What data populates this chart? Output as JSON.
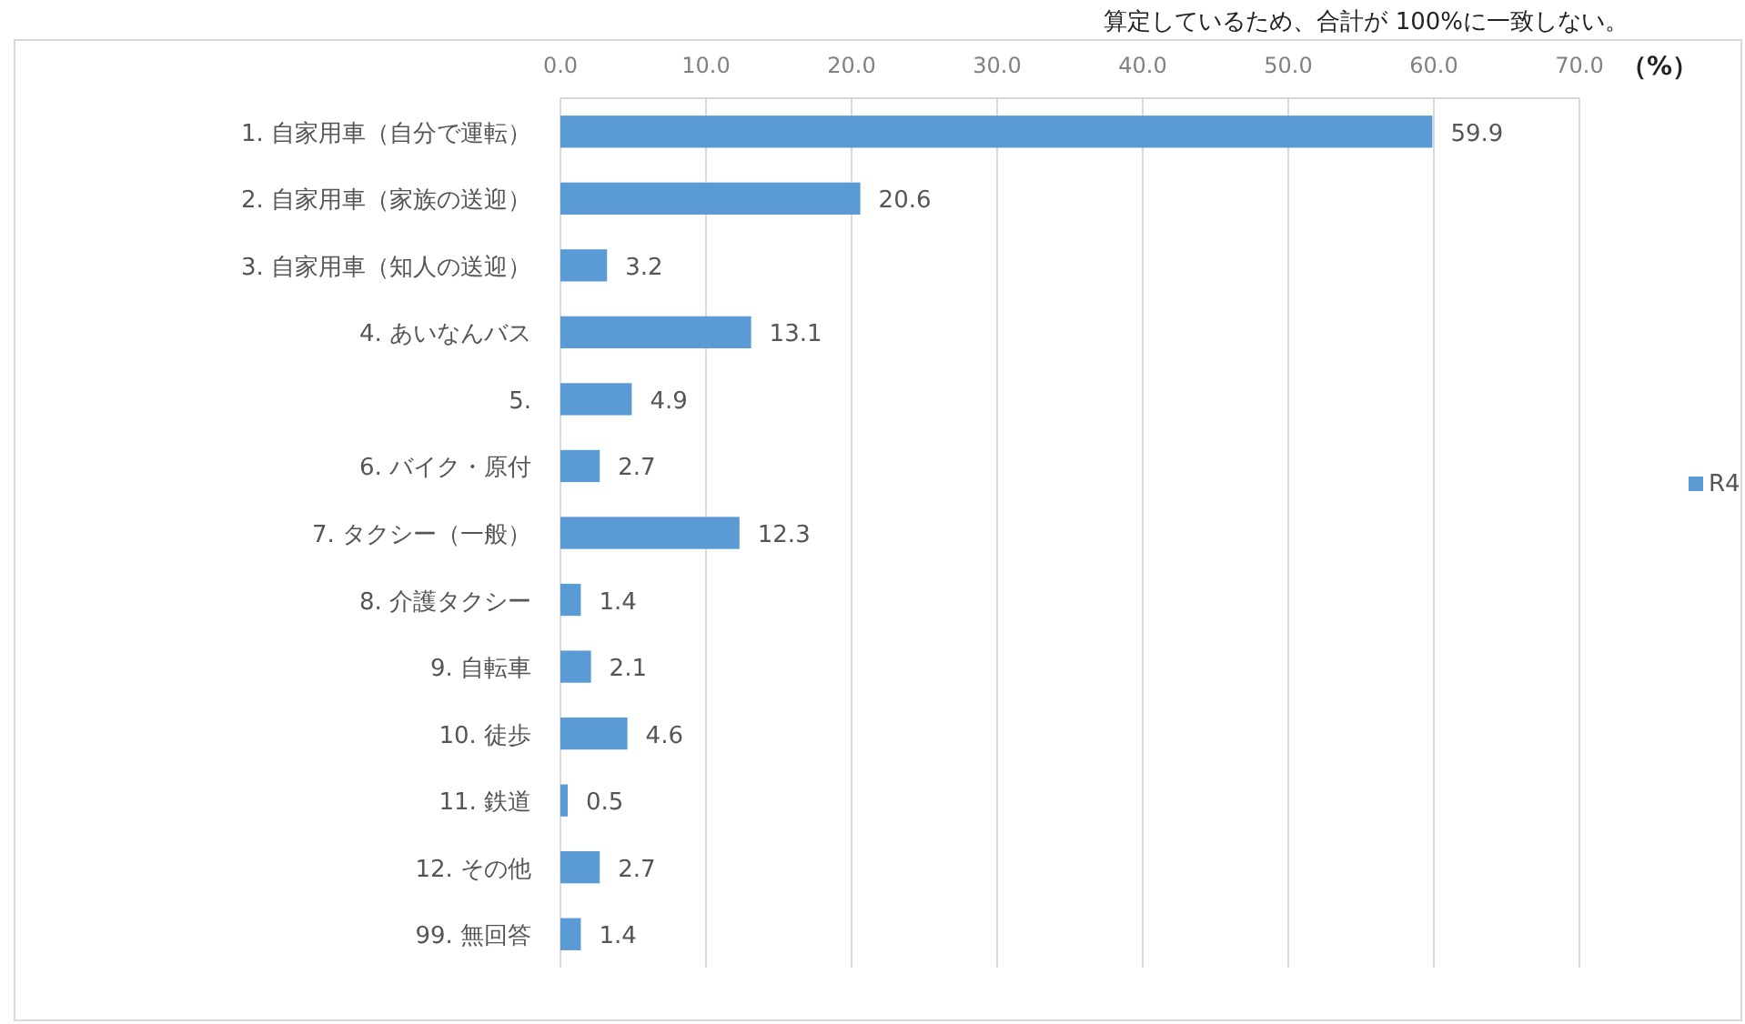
{
  "chart_data": {
    "type": "bar",
    "orientation": "horizontal",
    "annotations": [
      "算定しているため、合計が 100%に一致しない。"
    ],
    "xlabel": "（%）",
    "categories": [
      "1. 自家用車（自分で運転）",
      "2. 自家用車（家族の送迎）",
      "3. 自家用車（知人の送迎）",
      "4. あいなんバス",
      "5.",
      "6. バイク・原付",
      "7. タクシー（一般）",
      "8. 介護タクシー",
      "9. 自転車",
      "10. 徒歩",
      "11. 鉄道",
      "12. その他",
      "99. 無回答"
    ],
    "series": [
      {
        "name": "R4",
        "color": "#5b9bd5",
        "values": [
          59.9,
          20.6,
          3.2,
          13.1,
          4.9,
          2.7,
          12.3,
          1.4,
          2.1,
          4.6,
          0.5,
          2.7,
          1.4
        ]
      }
    ],
    "xlim": [
      0,
      70
    ],
    "xticks": [
      {
        "value": 0,
        "label": "0.0"
      },
      {
        "value": 10,
        "label": "10.0"
      },
      {
        "value": 20,
        "label": "20.0"
      },
      {
        "value": 30,
        "label": "30.0"
      },
      {
        "value": 40,
        "label": "40.0"
      },
      {
        "value": 50,
        "label": "50.0"
      },
      {
        "value": 60,
        "label": "60.0"
      },
      {
        "value": 70,
        "label": "70.0"
      }
    ],
    "grid": "x",
    "legend": "right",
    "data_labels": true
  }
}
